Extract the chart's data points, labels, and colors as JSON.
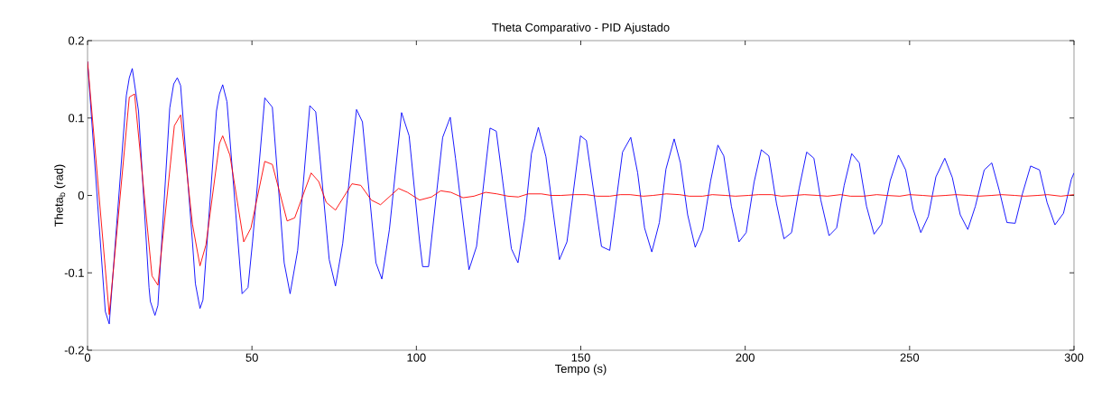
{
  "chart_data": {
    "type": "line",
    "title": "Theta Comparativo - PID Ajustado",
    "xlabel": "Tempo (s)",
    "ylabel": "Theta$_{b}$ (rad)",
    "xlim": [
      0,
      300
    ],
    "ylim": [
      -0.2,
      0.2
    ],
    "xticks": [
      0,
      50,
      100,
      150,
      200,
      250,
      300
    ],
    "yticks": [
      -0.2,
      -0.1,
      0,
      0.1,
      0.2
    ],
    "series": [
      {
        "color": "#0000ff",
        "x": [
          0,
          5.4,
          6.6,
          11.8,
          12.7,
          13.6,
          15.5,
          18.7,
          19.1,
          20.5,
          21.4,
          25.0,
          26.2,
          27.3,
          28.3,
          31.9,
          32.8,
          34.2,
          35.1,
          39.2,
          40.1,
          41.1,
          42.4,
          47.0,
          48.8,
          50.2,
          53.9,
          56.2,
          59.8,
          61.6,
          63.9,
          67.6,
          69.4,
          73.5,
          75.4,
          77.6,
          81.8,
          83.6,
          87.7,
          89.5,
          91.8,
          95.5,
          97.8,
          101.0,
          101.9,
          103.7,
          108.0,
          110.3,
          111.9,
          116.0,
          118.3,
          122.4,
          124.3,
          128.9,
          130.9,
          133.0,
          135.0,
          137.1,
          139.4,
          143.5,
          145.8,
          149.9,
          151.7,
          156.3,
          158.8,
          162.7,
          165.2,
          167.3,
          169.4,
          171.6,
          173.9,
          175.9,
          178.4,
          180.3,
          182.5,
          184.8,
          187.1,
          189.5,
          191.7,
          193.5,
          195.8,
          198.1,
          200.3,
          202.7,
          204.9,
          207.2,
          209.5,
          211.8,
          214.1,
          216.4,
          218.7,
          220.9,
          223.0,
          225.5,
          227.8,
          230.1,
          232.4,
          234.7,
          236.9,
          239.2,
          241.5,
          244.1,
          246.6,
          248.8,
          251.1,
          253.4,
          255.7,
          258.0,
          260.7,
          263.0,
          265.4,
          267.7,
          270.0,
          272.7,
          275.0,
          277.3,
          279.6,
          282.1,
          284.3,
          286.8,
          289.5,
          291.8,
          294.2,
          296.8,
          299.2,
          300
        ],
        "values": [
          0.173,
          -0.15,
          -0.166,
          0.129,
          0.152,
          0.164,
          0.109,
          -0.119,
          -0.137,
          -0.155,
          -0.142,
          0.113,
          0.144,
          0.152,
          0.142,
          -0.06,
          -0.114,
          -0.146,
          -0.135,
          0.109,
          0.131,
          0.143,
          0.121,
          -0.127,
          -0.119,
          -0.059,
          0.126,
          0.114,
          -0.087,
          -0.127,
          -0.071,
          0.116,
          0.108,
          -0.083,
          -0.117,
          -0.062,
          0.111,
          0.095,
          -0.087,
          -0.108,
          -0.044,
          0.107,
          0.077,
          -0.06,
          -0.092,
          -0.092,
          0.075,
          0.101,
          0.048,
          -0.096,
          -0.066,
          0.087,
          0.083,
          -0.069,
          -0.087,
          -0.029,
          0.054,
          0.088,
          0.05,
          -0.083,
          -0.06,
          0.077,
          0.071,
          -0.066,
          -0.071,
          0.056,
          0.075,
          0.029,
          -0.042,
          -0.073,
          -0.035,
          0.034,
          0.073,
          0.042,
          -0.025,
          -0.067,
          -0.044,
          0.019,
          0.065,
          0.051,
          -0.014,
          -0.06,
          -0.048,
          0.017,
          0.059,
          0.051,
          -0.01,
          -0.056,
          -0.048,
          0.009,
          0.056,
          0.048,
          -0.006,
          -0.052,
          -0.042,
          0.013,
          0.054,
          0.042,
          -0.014,
          -0.05,
          -0.037,
          0.019,
          0.052,
          0.033,
          -0.018,
          -0.048,
          -0.027,
          0.024,
          0.048,
          0.023,
          -0.025,
          -0.044,
          -0.014,
          0.033,
          0.042,
          0.006,
          -0.035,
          -0.036,
          0.002,
          0.038,
          0.033,
          -0.009,
          -0.038,
          -0.023,
          0.021,
          0.029
        ]
      },
      {
        "color": "#ff0000",
        "x": [
          0,
          6.6,
          12.7,
          14.3,
          19.6,
          21.4,
          26.4,
          28.3,
          31.9,
          34.2,
          36.0,
          40.1,
          41.1,
          43.3,
          47.5,
          49.7,
          53.9,
          56.2,
          60.7,
          63.0,
          68.0,
          70.3,
          72.6,
          75.4,
          80.4,
          83.1,
          86.3,
          89.1,
          94.6,
          97.3,
          101,
          104.6,
          107.4,
          110.5,
          114.2,
          117.5,
          121.1,
          124.5,
          127.9,
          131,
          134,
          138,
          141,
          144,
          148,
          151.7,
          155,
          158.8,
          162,
          165,
          169,
          172,
          176,
          180,
          183,
          187,
          190,
          194,
          197,
          201,
          204,
          208,
          211,
          215,
          218,
          222,
          225,
          229,
          232,
          236,
          240,
          243,
          247,
          250,
          254,
          257,
          261,
          264,
          268,
          271,
          275,
          278,
          282,
          285,
          289,
          292,
          296,
          300
        ],
        "values": [
          0.173,
          -0.154,
          0.127,
          0.131,
          -0.104,
          -0.116,
          0.09,
          0.104,
          -0.037,
          -0.091,
          -0.064,
          0.067,
          0.077,
          0.052,
          -0.06,
          -0.042,
          0.044,
          0.04,
          -0.033,
          -0.029,
          0.029,
          0.018,
          -0.009,
          -0.019,
          0.015,
          0.013,
          -0.006,
          -0.012,
          0.009,
          0.004,
          -0.006,
          -0.002,
          0.006,
          0.004,
          -0.003,
          -0.001,
          0.004,
          0.002,
          -0.001,
          -0.002,
          0.002,
          0.002,
          0,
          0,
          0.001,
          0.001,
          -0.001,
          -0.001,
          0.001,
          0.001,
          -0.001,
          0,
          0.002,
          0.001,
          -0.001,
          -0.001,
          0.001,
          0,
          -0.001,
          0,
          0.001,
          0.001,
          -0.001,
          0,
          0.001,
          0,
          -0.001,
          0.001,
          -0.001,
          -0.001,
          0.001,
          0,
          -0.001,
          0.001,
          0,
          -0.001,
          0,
          0.001,
          0,
          -0.001,
          0,
          0.001,
          0,
          -0.001,
          0,
          0.001,
          -0.001,
          0.001
        ]
      }
    ]
  }
}
